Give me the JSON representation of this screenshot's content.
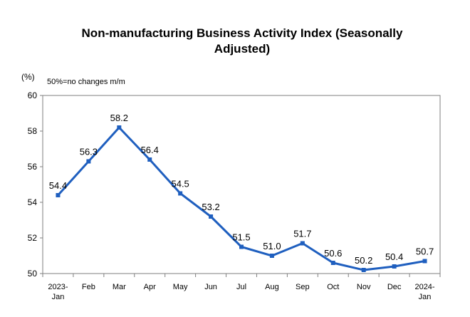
{
  "chart_data": {
    "type": "line",
    "title_lines": [
      "Non-manufacturing Business Activity Index (Seasonally",
      "Adjusted)"
    ],
    "unit_label": "(%)",
    "note": "50%=no changes m/m",
    "categories": [
      [
        "2023-",
        "Jan"
      ],
      [
        "Feb"
      ],
      [
        "Mar"
      ],
      [
        "Apr"
      ],
      [
        "May"
      ],
      [
        "Jun"
      ],
      [
        "Jul"
      ],
      [
        "Aug"
      ],
      [
        "Sep"
      ],
      [
        "Oct"
      ],
      [
        "Nov"
      ],
      [
        "Dec"
      ],
      [
        "2024-",
        "Jan"
      ]
    ],
    "values": [
      54.4,
      56.3,
      58.2,
      56.4,
      54.5,
      53.2,
      51.5,
      51.0,
      51.7,
      50.6,
      50.2,
      50.4,
      50.7
    ],
    "value_labels": [
      "54.4",
      "56.3",
      "58.2",
      "56.4",
      "54.5",
      "53.2",
      "51.5",
      "51.0",
      "51.7",
      "50.6",
      "50.2",
      "50.4",
      "50.7"
    ],
    "ylim": [
      50,
      60
    ],
    "yticks": [
      50,
      52,
      54,
      56,
      58,
      60
    ],
    "grid": false,
    "line_color": "#1f5fbf",
    "marker": "square"
  }
}
